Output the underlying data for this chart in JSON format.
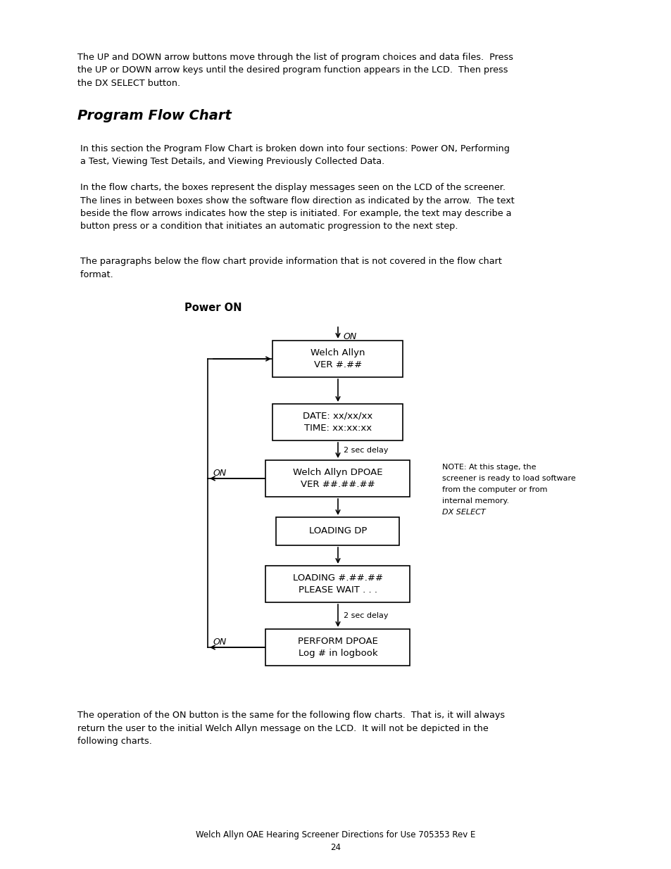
{
  "bg_color": "#ffffff",
  "top_paragraph": "The UP and DOWN arrow buttons move through the list of program choices and data files.  Press\nthe UP or DOWN arrow keys until the desired program function appears in the LCD.  Then press\nthe DX SELECT button.",
  "section_title": "Program Flow Chart",
  "para1": " In this section the Program Flow Chart is broken down into four sections: Power ON, Performing\n a Test, Viewing Test Details, and Viewing Previously Collected Data.",
  "para2": " In the flow charts, the boxes represent the display messages seen on the LCD of the screener.\n The lines in between boxes show the software flow direction as indicated by the arrow.  The text\n beside the flow arrows indicates how the step is initiated. For example, the text may describe a\n button press or a condition that initiates an automatic progression to the next step.",
  "para3": " The paragraphs below the flow chart provide information that is not covered in the flow chart\n format.",
  "flowchart_title": "Power ON",
  "bottom_para": "The operation of the ON button is the same for the following flow charts.  That is, it will always\nreturn the user to the initial Welch Allyn message on the LCD.  It will not be depicted in the\nfollowing charts.",
  "footer_line1": "Welch Allyn OAE Hearing Screener Directions for Use 705353 Rev E",
  "footer_line2": "24"
}
